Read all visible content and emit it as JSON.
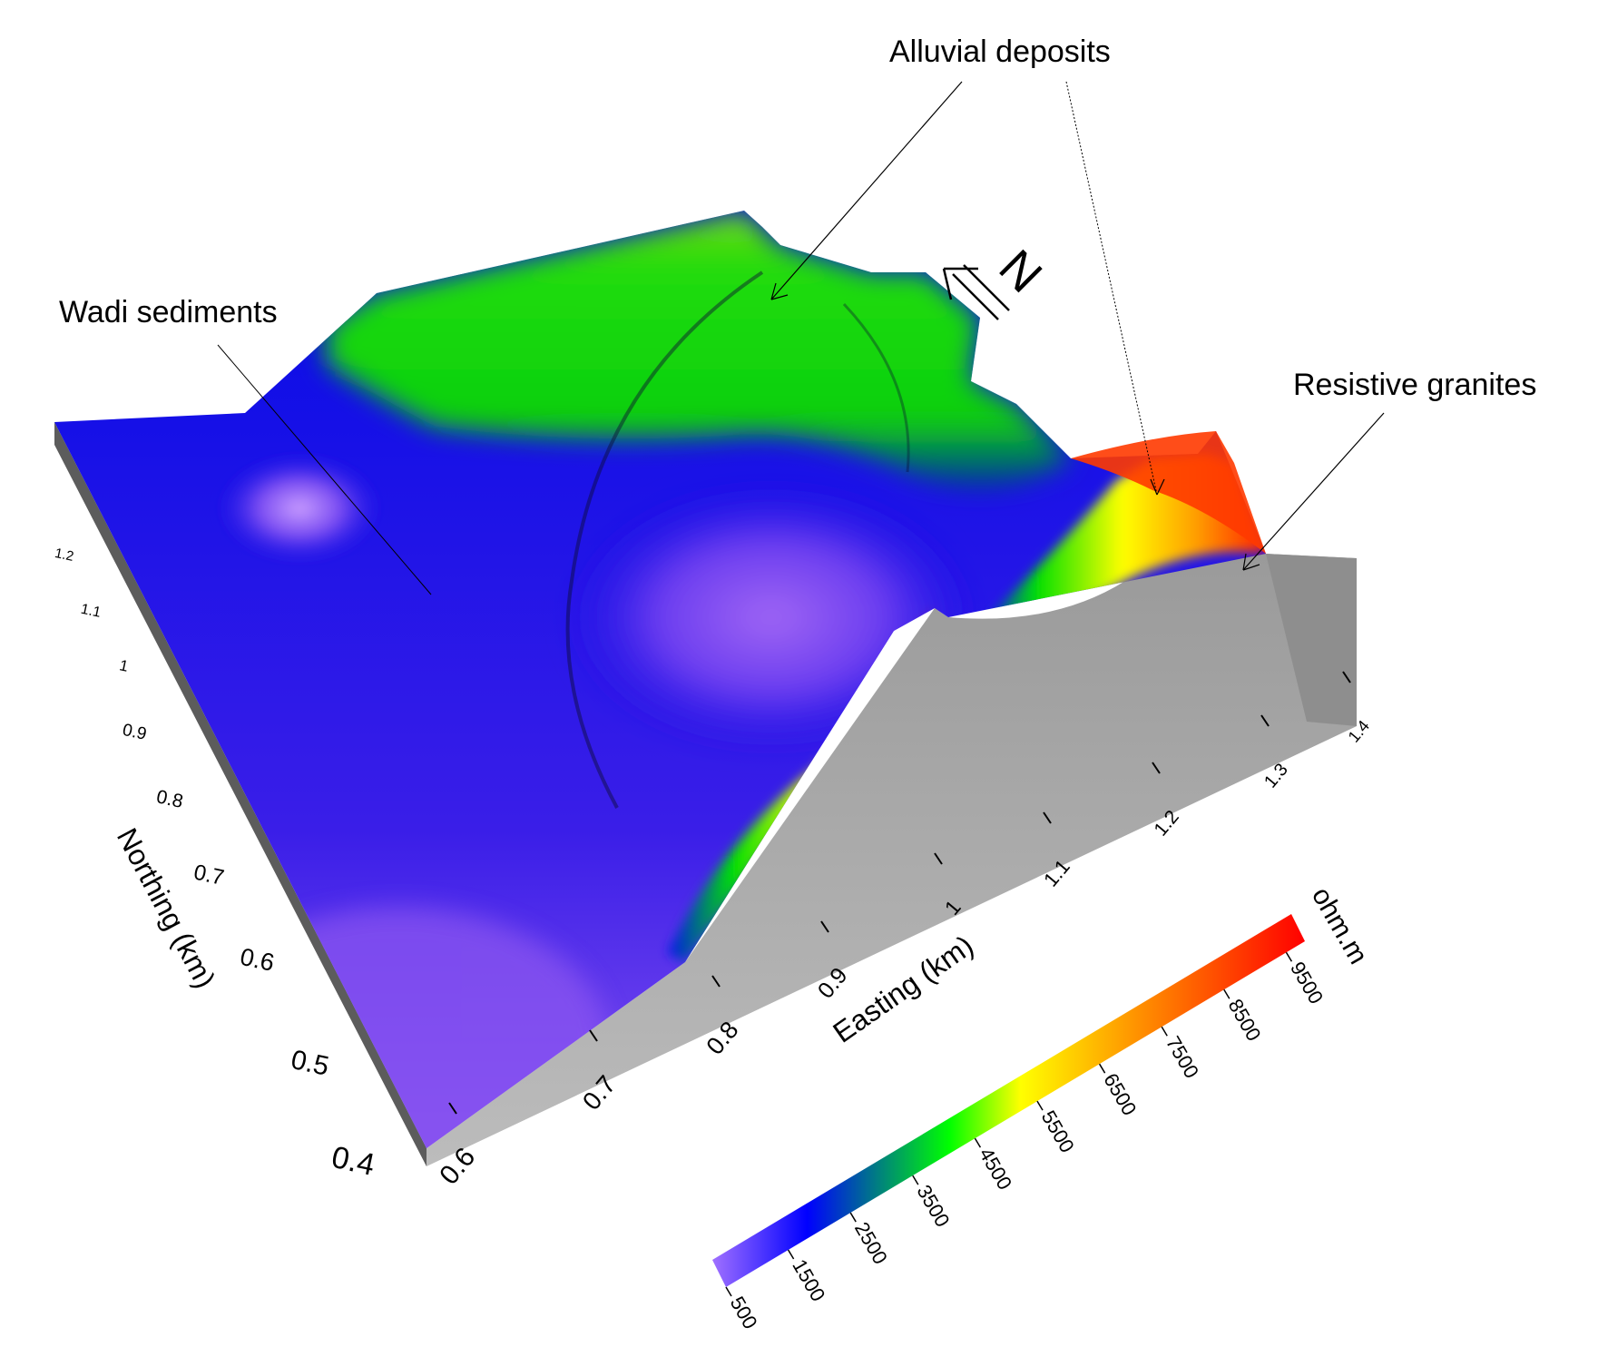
{
  "chart_data": {
    "type": "surface-3d",
    "title": "",
    "xlabel": "Easting (km)",
    "ylabel": "Northing (km)",
    "x_ticks": [
      "0.6",
      "0.7",
      "0.8",
      "0.9",
      "1",
      "1.1",
      "1.2",
      "1.3",
      "1.4"
    ],
    "y_ticks": [
      "0.4",
      "0.5",
      "0.6",
      "0.7",
      "0.8",
      "0.9",
      "1",
      "1.1",
      "1.2"
    ],
    "colorbar": {
      "unit": "ohm.m",
      "ticks": [
        "500",
        "1500",
        "2500",
        "3500",
        "4500",
        "5500",
        "6500",
        "7500",
        "8500",
        "9500"
      ],
      "range": [
        500,
        9800
      ],
      "colors": [
        "#9966ff",
        "#0000ff",
        "#00ff00",
        "#ffff00",
        "#ff8000",
        "#ff0000"
      ]
    },
    "annotations": [
      "Alluvial deposits",
      "Wadi sediments",
      "Resistive granites"
    ],
    "north_arrow": "N"
  }
}
